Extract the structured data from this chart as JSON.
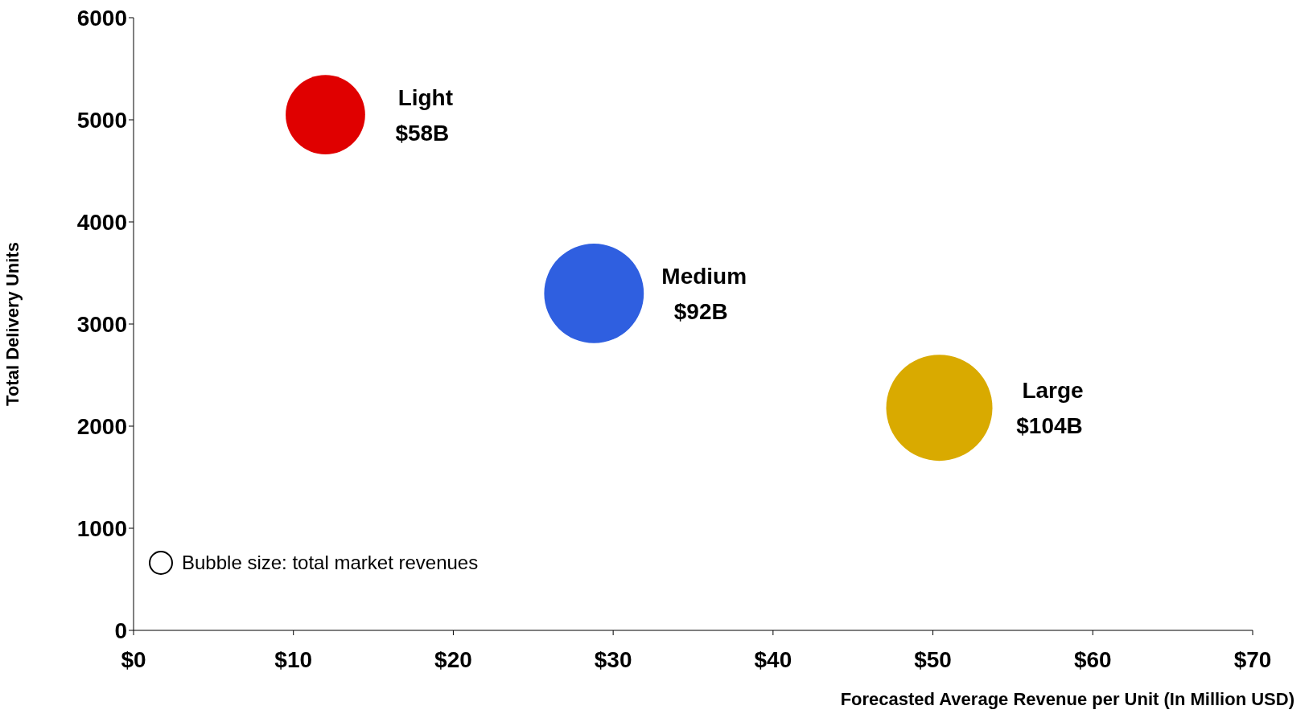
{
  "chart_data": {
    "type": "bubble",
    "xlabel": "Forecasted Average Revenue per Unit (In Million USD)",
    "ylabel": "Total Delivery Units",
    "xlim": [
      0,
      70
    ],
    "xticks": [
      {
        "value": 0,
        "label": "$0"
      },
      {
        "value": 10,
        "label": "$10"
      },
      {
        "value": 20,
        "label": "$20"
      },
      {
        "value": 30,
        "label": "$30"
      },
      {
        "value": 40,
        "label": "$40"
      },
      {
        "value": 50,
        "label": "$50"
      },
      {
        "value": 60,
        "label": "$60"
      },
      {
        "value": 70,
        "label": "$70"
      }
    ],
    "ylim": [
      0,
      6000
    ],
    "yticks": [
      0,
      1000,
      2000,
      3000,
      4000,
      5000,
      6000
    ],
    "legend": false,
    "series": [
      {
        "name": "Light",
        "color": "#e00000",
        "x": [
          12
        ],
        "values": [
          5050
        ],
        "sizes": [
          0.56
        ]
      },
      {
        "name": "Medium",
        "color": "#2f5fe0",
        "x": [
          28.8
        ],
        "values": [
          3300
        ],
        "sizes": [
          0.88
        ]
      },
      {
        "name": "Large",
        "color": "#d9aa00",
        "x": [
          50.4
        ],
        "values": [
          2180
        ],
        "sizes": [
          1
        ]
      }
    ],
    "annotations": [
      "$58B",
      "$92B",
      "$104B",
      "Bubble size: total market revenues"
    ]
  }
}
